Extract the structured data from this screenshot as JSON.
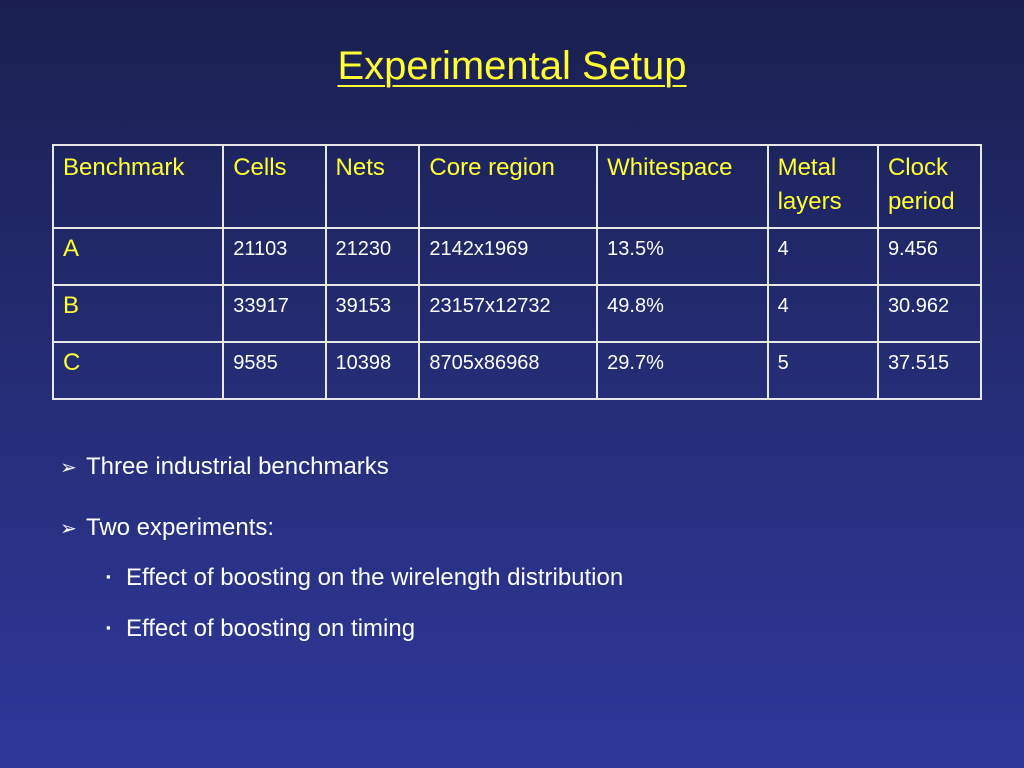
{
  "slide": {
    "title": "Experimental Setup"
  },
  "table": {
    "headers": [
      "Benchmark",
      "Cells",
      "Nets",
      "Core region",
      "Whitespace",
      "Metal layers",
      "Clock period"
    ],
    "rows": [
      [
        "A",
        "21103",
        "21230",
        "2142x1969",
        "13.5%",
        "4",
        "9.456"
      ],
      [
        "B",
        "33917",
        "39153",
        "23157x12732",
        "49.8%",
        "4",
        "30.962"
      ],
      [
        "C",
        "9585",
        "10398",
        "8705x86968",
        "29.7%",
        "5",
        "37.515"
      ]
    ]
  },
  "bullets": {
    "marker_level1": "➢",
    "marker_level2": "▪",
    "items": [
      {
        "text": "Three industrial benchmarks"
      },
      {
        "text": "Two experiments:"
      }
    ],
    "sub_items": [
      {
        "text": "Effect of boosting on the wirelength distribution"
      },
      {
        "text": "Effect of boosting on timing"
      }
    ]
  },
  "colors": {
    "background_top": "#1a1f4f",
    "background_bottom": "#2f379a",
    "accent_yellow": "#ffff33",
    "text_white": "#ffffff",
    "table_border": "#e8e8e8"
  }
}
